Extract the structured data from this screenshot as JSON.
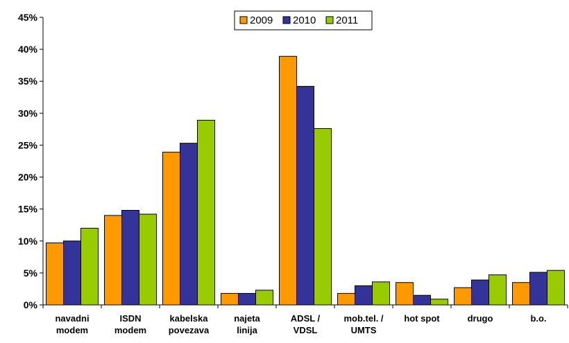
{
  "chart_data": {
    "type": "bar",
    "categories": [
      [
        "navadni",
        "modem"
      ],
      [
        "ISDN",
        "modem"
      ],
      [
        "kabelska",
        "povezava"
      ],
      [
        "najeta",
        "linija"
      ],
      [
        "ADSL /",
        "VDSL"
      ],
      [
        "mob.tel. /",
        "UMTS"
      ],
      [
        "hot spot"
      ],
      [
        "drugo"
      ],
      [
        "b.o."
      ]
    ],
    "series": [
      {
        "name": "2009",
        "color": "#FF9900",
        "values": [
          9.7,
          14.0,
          23.9,
          1.8,
          38.9,
          1.8,
          3.5,
          2.7,
          3.5
        ]
      },
      {
        "name": "2010",
        "color": "#333399",
        "values": [
          10.0,
          14.8,
          25.3,
          1.8,
          34.2,
          3.0,
          1.5,
          3.9,
          5.1
        ]
      },
      {
        "name": "2011",
        "color": "#99CC00",
        "values": [
          12.0,
          14.2,
          28.9,
          2.3,
          27.6,
          3.6,
          0.9,
          4.7,
          5.4
        ]
      }
    ],
    "y_ticks": [
      "0%",
      "5%",
      "10%",
      "15%",
      "20%",
      "25%",
      "30%",
      "35%",
      "40%",
      "45%"
    ],
    "ylim": [
      0,
      45
    ],
    "grid": false,
    "legend_position": "top-center",
    "title": "",
    "xlabel": "",
    "ylabel": ""
  }
}
